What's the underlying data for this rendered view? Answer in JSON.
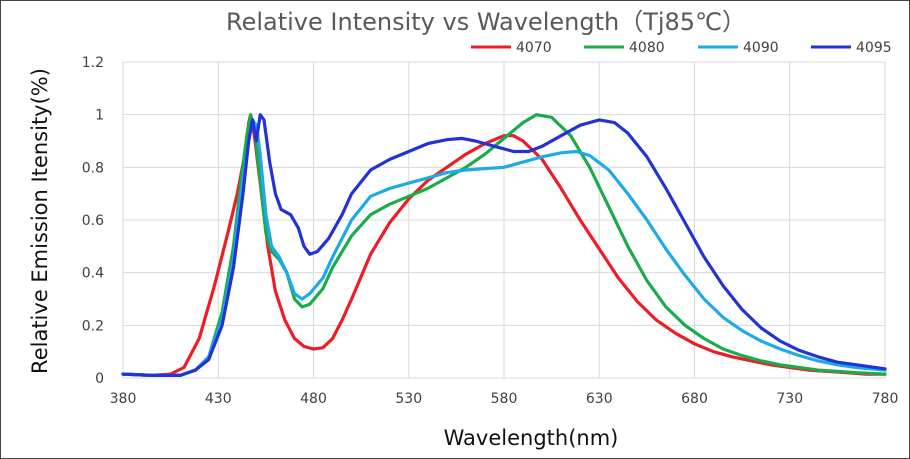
{
  "chart_data": {
    "type": "line",
    "title": "Relative Intensity vs Wavelength（Tj85℃）",
    "xlabel": "Wavelength(nm)",
    "ylabel": "Relative Emission Itensity(%)",
    "xlim": [
      380,
      780
    ],
    "ylim": [
      0,
      1.2
    ],
    "x_ticks": [
      "380",
      "430",
      "480",
      "530",
      "580",
      "630",
      "680",
      "730",
      "780"
    ],
    "y_ticks": [
      "0",
      "0.2",
      "0.4",
      "0.6",
      "0.8",
      "1",
      "1.2"
    ],
    "grid": "vertical and horizontal",
    "legend_position": "top-right",
    "series": [
      {
        "name": "4070",
        "color": "#ee1c25",
        "points": [
          [
            380,
            0.015
          ],
          [
            395,
            0.01
          ],
          [
            405,
            0.015
          ],
          [
            412,
            0.04
          ],
          [
            420,
            0.15
          ],
          [
            428,
            0.35
          ],
          [
            435,
            0.55
          ],
          [
            440,
            0.7
          ],
          [
            444,
            0.85
          ],
          [
            446,
            0.97
          ],
          [
            447,
            1.0
          ],
          [
            449,
            0.92
          ],
          [
            452,
            0.74
          ],
          [
            456,
            0.5
          ],
          [
            460,
            0.33
          ],
          [
            465,
            0.22
          ],
          [
            470,
            0.15
          ],
          [
            475,
            0.12
          ],
          [
            480,
            0.11
          ],
          [
            485,
            0.115
          ],
          [
            490,
            0.15
          ],
          [
            495,
            0.22
          ],
          [
            500,
            0.3
          ],
          [
            510,
            0.47
          ],
          [
            520,
            0.59
          ],
          [
            530,
            0.68
          ],
          [
            540,
            0.75
          ],
          [
            550,
            0.8
          ],
          [
            560,
            0.85
          ],
          [
            570,
            0.89
          ],
          [
            580,
            0.92
          ],
          [
            585,
            0.92
          ],
          [
            590,
            0.9
          ],
          [
            600,
            0.83
          ],
          [
            610,
            0.72
          ],
          [
            620,
            0.6
          ],
          [
            630,
            0.49
          ],
          [
            640,
            0.38
          ],
          [
            650,
            0.29
          ],
          [
            660,
            0.22
          ],
          [
            670,
            0.17
          ],
          [
            680,
            0.13
          ],
          [
            690,
            0.1
          ],
          [
            700,
            0.08
          ],
          [
            710,
            0.065
          ],
          [
            720,
            0.05
          ],
          [
            730,
            0.04
          ],
          [
            740,
            0.03
          ],
          [
            750,
            0.025
          ],
          [
            760,
            0.02
          ],
          [
            770,
            0.015
          ],
          [
            780,
            0.015
          ]
        ]
      },
      {
        "name": "4080",
        "color": "#1aab4a",
        "points": [
          [
            380,
            0.015
          ],
          [
            395,
            0.01
          ],
          [
            410,
            0.01
          ],
          [
            418,
            0.03
          ],
          [
            425,
            0.08
          ],
          [
            432,
            0.25
          ],
          [
            438,
            0.5
          ],
          [
            442,
            0.75
          ],
          [
            445,
            0.92
          ],
          [
            447,
            1.0
          ],
          [
            449,
            0.95
          ],
          [
            452,
            0.75
          ],
          [
            455,
            0.55
          ],
          [
            458,
            0.48
          ],
          [
            462,
            0.45
          ],
          [
            466,
            0.4
          ],
          [
            470,
            0.3
          ],
          [
            474,
            0.27
          ],
          [
            478,
            0.28
          ],
          [
            485,
            0.34
          ],
          [
            490,
            0.42
          ],
          [
            500,
            0.54
          ],
          [
            510,
            0.62
          ],
          [
            520,
            0.66
          ],
          [
            530,
            0.69
          ],
          [
            540,
            0.72
          ],
          [
            550,
            0.76
          ],
          [
            560,
            0.8
          ],
          [
            570,
            0.85
          ],
          [
            580,
            0.91
          ],
          [
            590,
            0.97
          ],
          [
            597,
            1.0
          ],
          [
            605,
            0.99
          ],
          [
            615,
            0.92
          ],
          [
            625,
            0.8
          ],
          [
            635,
            0.65
          ],
          [
            645,
            0.5
          ],
          [
            655,
            0.37
          ],
          [
            665,
            0.27
          ],
          [
            675,
            0.2
          ],
          [
            685,
            0.15
          ],
          [
            695,
            0.11
          ],
          [
            705,
            0.085
          ],
          [
            715,
            0.065
          ],
          [
            725,
            0.05
          ],
          [
            735,
            0.04
          ],
          [
            745,
            0.03
          ],
          [
            755,
            0.025
          ],
          [
            765,
            0.02
          ],
          [
            780,
            0.015
          ]
        ]
      },
      {
        "name": "4090",
        "color": "#1eaae8",
        "points": [
          [
            380,
            0.015
          ],
          [
            395,
            0.01
          ],
          [
            410,
            0.01
          ],
          [
            418,
            0.03
          ],
          [
            425,
            0.08
          ],
          [
            432,
            0.22
          ],
          [
            438,
            0.45
          ],
          [
            442,
            0.7
          ],
          [
            446,
            0.9
          ],
          [
            448,
            0.98
          ],
          [
            450,
            0.96
          ],
          [
            452,
            0.85
          ],
          [
            455,
            0.62
          ],
          [
            458,
            0.5
          ],
          [
            462,
            0.46
          ],
          [
            466,
            0.4
          ],
          [
            470,
            0.32
          ],
          [
            474,
            0.3
          ],
          [
            478,
            0.32
          ],
          [
            485,
            0.38
          ],
          [
            490,
            0.46
          ],
          [
            500,
            0.6
          ],
          [
            510,
            0.69
          ],
          [
            520,
            0.72
          ],
          [
            530,
            0.74
          ],
          [
            540,
            0.76
          ],
          [
            550,
            0.78
          ],
          [
            560,
            0.79
          ],
          [
            570,
            0.795
          ],
          [
            580,
            0.8
          ],
          [
            590,
            0.82
          ],
          [
            600,
            0.84
          ],
          [
            610,
            0.855
          ],
          [
            618,
            0.86
          ],
          [
            625,
            0.845
          ],
          [
            635,
            0.79
          ],
          [
            645,
            0.7
          ],
          [
            655,
            0.6
          ],
          [
            665,
            0.49
          ],
          [
            675,
            0.39
          ],
          [
            685,
            0.3
          ],
          [
            695,
            0.23
          ],
          [
            705,
            0.18
          ],
          [
            715,
            0.14
          ],
          [
            725,
            0.11
          ],
          [
            735,
            0.085
          ],
          [
            745,
            0.065
          ],
          [
            755,
            0.05
          ],
          [
            765,
            0.04
          ],
          [
            780,
            0.03
          ]
        ]
      },
      {
        "name": "4095",
        "color": "#2133d6",
        "points": [
          [
            380,
            0.015
          ],
          [
            395,
            0.01
          ],
          [
            410,
            0.01
          ],
          [
            418,
            0.03
          ],
          [
            425,
            0.07
          ],
          [
            432,
            0.2
          ],
          [
            438,
            0.42
          ],
          [
            443,
            0.7
          ],
          [
            446,
            0.9
          ],
          [
            448,
            0.98
          ],
          [
            450,
            0.9
          ],
          [
            452,
            1.0
          ],
          [
            454,
            0.98
          ],
          [
            457,
            0.82
          ],
          [
            460,
            0.7
          ],
          [
            463,
            0.64
          ],
          [
            468,
            0.62
          ],
          [
            472,
            0.57
          ],
          [
            475,
            0.5
          ],
          [
            478,
            0.47
          ],
          [
            482,
            0.48
          ],
          [
            488,
            0.53
          ],
          [
            495,
            0.62
          ],
          [
            500,
            0.7
          ],
          [
            510,
            0.79
          ],
          [
            520,
            0.83
          ],
          [
            530,
            0.86
          ],
          [
            540,
            0.89
          ],
          [
            550,
            0.905
          ],
          [
            558,
            0.91
          ],
          [
            565,
            0.9
          ],
          [
            575,
            0.88
          ],
          [
            585,
            0.86
          ],
          [
            593,
            0.86
          ],
          [
            600,
            0.88
          ],
          [
            610,
            0.92
          ],
          [
            620,
            0.96
          ],
          [
            630,
            0.98
          ],
          [
            638,
            0.97
          ],
          [
            645,
            0.93
          ],
          [
            655,
            0.84
          ],
          [
            665,
            0.72
          ],
          [
            675,
            0.59
          ],
          [
            685,
            0.46
          ],
          [
            695,
            0.35
          ],
          [
            705,
            0.26
          ],
          [
            715,
            0.19
          ],
          [
            725,
            0.14
          ],
          [
            735,
            0.105
          ],
          [
            745,
            0.08
          ],
          [
            755,
            0.06
          ],
          [
            765,
            0.05
          ],
          [
            780,
            0.035
          ]
        ]
      }
    ]
  }
}
